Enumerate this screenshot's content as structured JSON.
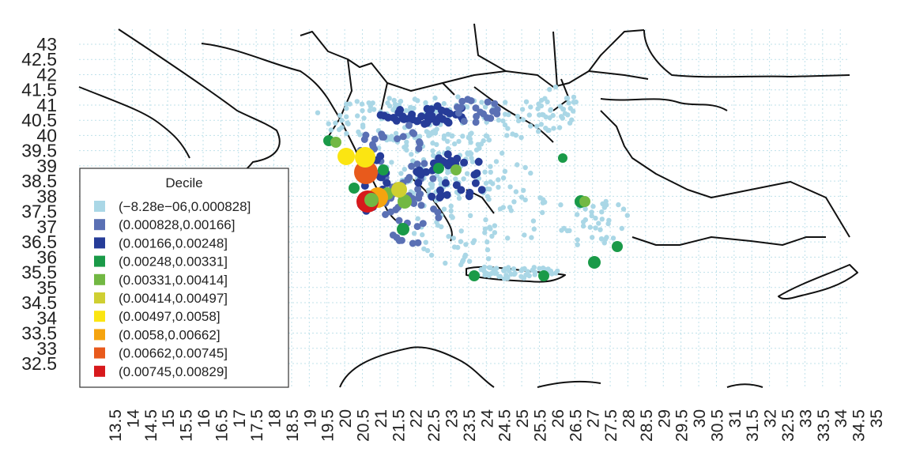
{
  "legend": {
    "title": "Decile",
    "items": [
      {
        "label": "(−8.28e−06,0.000828]",
        "color": "#aad7e6"
      },
      {
        "label": "(0.000828,0.00166]",
        "color": "#5a70b4"
      },
      {
        "label": "(0.00166,0.00248]",
        "color": "#263c98"
      },
      {
        "label": "(0.00248,0.00331]",
        "color": "#1a9a48"
      },
      {
        "label": "(0.00331,0.00414]",
        "color": "#72b843"
      },
      {
        "label": "(0.00414,0.00497]",
        "color": "#cfcf32"
      },
      {
        "label": "(0.00497,0.0058]",
        "color": "#fbe512"
      },
      {
        "label": "(0.0058,0.00662]",
        "color": "#f5a40f"
      },
      {
        "label": "(0.00662,0.00745]",
        "color": "#e85a1c"
      },
      {
        "label": "(0.00745,0.00829]",
        "color": "#d7191c"
      }
    ]
  },
  "axes": {
    "y_ticks": [
      "32.5",
      "33",
      "33.5",
      "34",
      "34.5",
      "35",
      "35.5",
      "36",
      "36.5",
      "37",
      "37.5",
      "38",
      "38.5",
      "39",
      "39.5",
      "40",
      "40.5",
      "41",
      "41.5",
      "42",
      "42.5",
      "43"
    ],
    "x_ticks": [
      "13.5",
      "14",
      "14.5",
      "15",
      "15.5",
      "16",
      "16.5",
      "17",
      "17.5",
      "18",
      "18.5",
      "19",
      "19.5",
      "20",
      "20.5",
      "21",
      "21.5",
      "22",
      "22.5",
      "23",
      "23.5",
      "24",
      "24.5",
      "25",
      "25.5",
      "26",
      "26.5",
      "27",
      "27.5",
      "28",
      "28.5",
      "29",
      "29.5",
      "30",
      "30.5",
      "31",
      "31.5",
      "32",
      "32.5",
      "33",
      "33.5",
      "34",
      "34.5",
      "35"
    ],
    "lon_range": [
      13.5,
      35
    ],
    "lat_range": [
      32.5,
      43
    ],
    "grid": true
  }
}
